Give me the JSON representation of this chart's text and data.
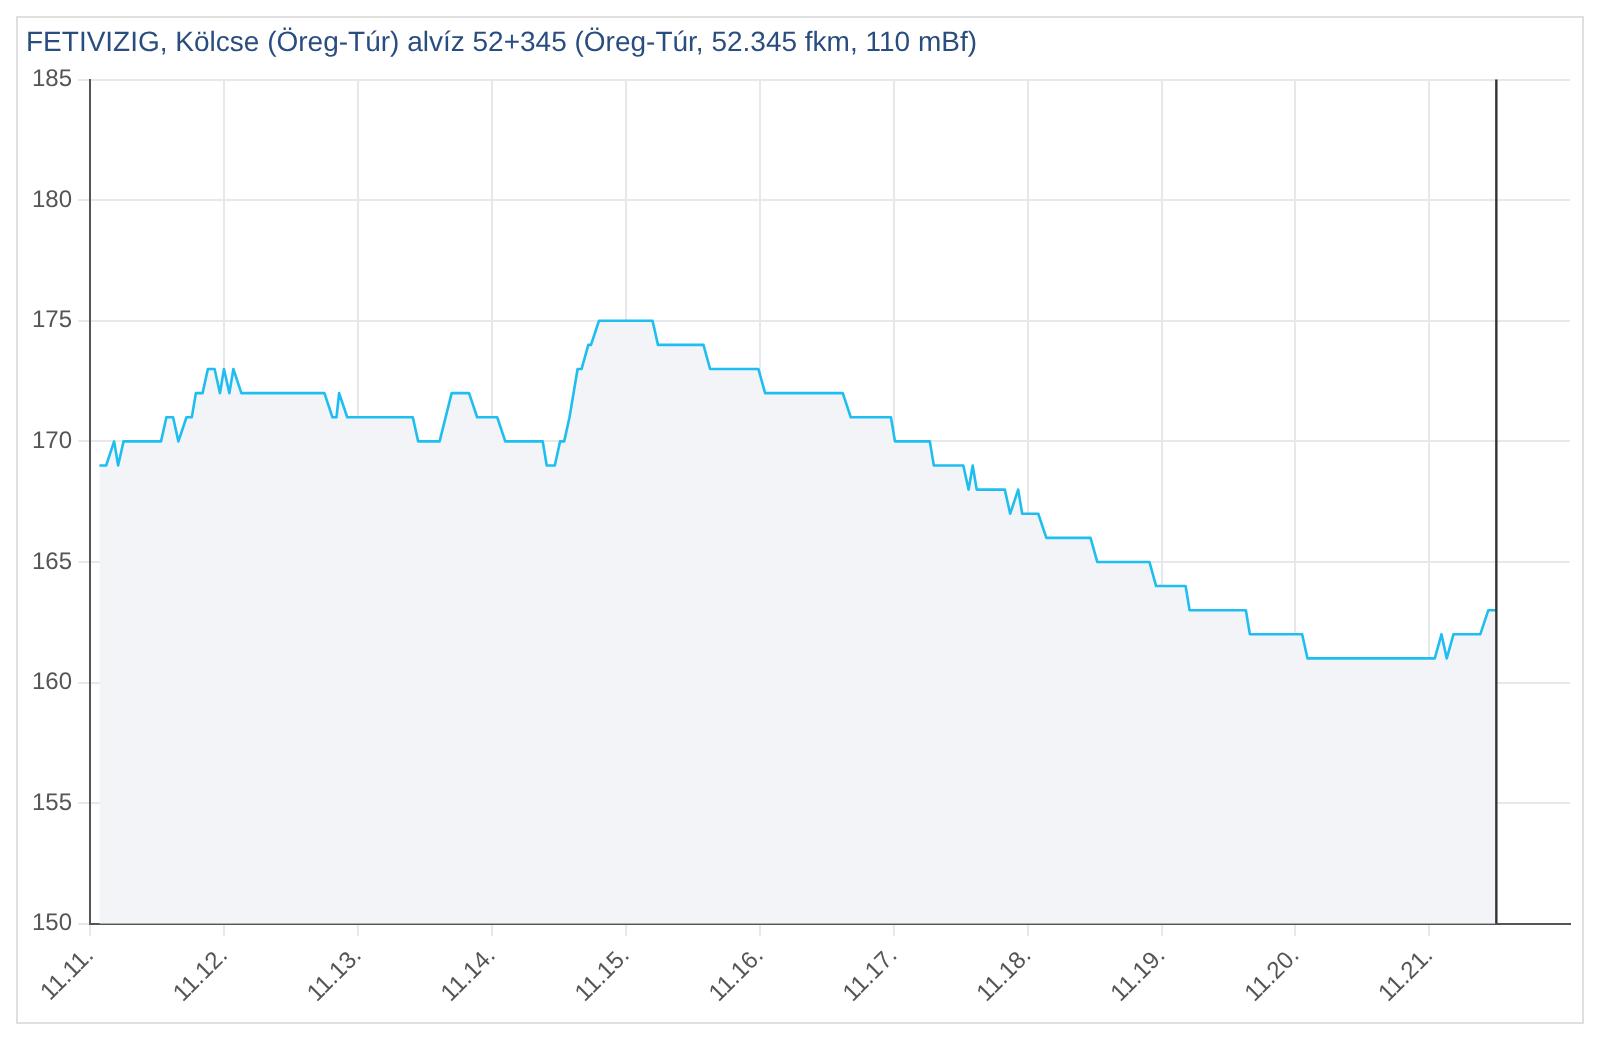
{
  "chart_data": {
    "type": "area",
    "title": "FETIVIZIG, Kölcse (Öreg-Túr) alvíz 52+345 (Öreg-Túr, 52.345 fkm, 110 mBf)",
    "series": [
      {
        "color": "#1ebef0",
        "x": [
          "--11-11T01:41",
          "--11-11T02:53",
          "--11-11T04:19",
          "--11-11T05:02",
          "--11-11T06:00",
          "--11-11T12:43",
          "--11-11T13:41",
          "--11-11T14:53",
          "--11-11T15:50",
          "--11-11T17:17",
          "--11-11T18:14",
          "--11-11T18:58",
          "--11-11T20:10",
          "--11-11T21:07",
          "--11-11T22:19",
          "--11-11T23:17",
          "--11-12T00:00",
          "--11-12T00:58",
          "--11-12T01:41",
          "--11-12T03:07",
          "--11-12T18:00",
          "--11-12T19:26",
          "--11-12T20:10",
          "--11-12T20:38",
          "--11-12T22:05",
          "--11-13T09:50",
          "--11-13T10:48",
          "--11-13T14:38",
          "--11-13T16:48",
          "--11-13T19:55",
          "--11-13T21:22",
          "--11-14T00:58",
          "--11-14T02:24",
          "--11-14T09:07",
          "--11-14T09:50",
          "--11-14T11:17",
          "--11-14T12:14",
          "--11-14T12:58",
          "--11-14T13:55",
          "--11-14T15:22",
          "--11-14T16:05",
          "--11-14T17:17",
          "--11-14T17:46",
          "--11-14T19:12",
          "--11-15T04:48",
          "--11-15T05:46",
          "--11-15T13:55",
          "--11-15T15:07",
          "--11-15T23:46",
          "--11-16T00:58",
          "--11-16T14:53",
          "--11-16T16:19",
          "--11-16T23:31",
          "--11-17T00:14",
          "--11-17T06:29",
          "--11-17T07:12",
          "--11-17T12:29",
          "--11-17T13:26",
          "--11-17T14:10",
          "--11-17T14:53",
          "--11-17T19:55",
          "--11-17T20:53",
          "--11-17T22:19",
          "--11-17T23:02",
          "--11-18T01:55",
          "--11-18T03:22",
          "--11-18T11:17",
          "--11-18T12:29",
          "--11-18T21:50",
          "--11-18T23:02",
          "--11-19T04:19",
          "--11-19T05:02",
          "--11-19T15:07",
          "--11-19T15:50",
          "--11-20T01:12",
          "--11-20T02:10",
          "--11-21T00:58",
          "--11-21T02:10",
          "--11-21T03:07",
          "--11-21T04:19",
          "--11-21T09:07",
          "--11-21T10:34",
          "--11-21T12:00"
        ],
        "values": [
          169,
          169,
          170,
          169,
          170,
          170,
          171,
          171,
          170,
          171,
          171,
          172,
          172,
          173,
          173,
          172,
          173,
          172,
          173,
          172,
          172,
          171,
          171,
          172,
          171,
          171,
          170,
          170,
          172,
          172,
          171,
          171,
          170,
          170,
          169,
          169,
          170,
          170,
          171,
          173,
          173,
          174,
          174,
          175,
          175,
          174,
          174,
          173,
          173,
          172,
          172,
          171,
          171,
          170,
          170,
          169,
          169,
          168,
          169,
          168,
          168,
          167,
          168,
          167,
          167,
          166,
          166,
          165,
          165,
          164,
          164,
          163,
          163,
          162,
          162,
          161,
          161,
          162,
          161,
          162,
          162,
          163,
          163
        ]
      }
    ],
    "xlim": [
      "--11-11",
      "--11-22T01:12"
    ],
    "xticks": [
      {
        "value": "--11-11",
        "label": "11.11."
      },
      {
        "value": "--11-12",
        "label": "11.12."
      },
      {
        "value": "--11-13",
        "label": "11.13."
      },
      {
        "value": "--11-14",
        "label": "11.14."
      },
      {
        "value": "--11-15",
        "label": "11.15."
      },
      {
        "value": "--11-16",
        "label": "11.16."
      },
      {
        "value": "--11-17",
        "label": "11.17."
      },
      {
        "value": "--11-18",
        "label": "11.18."
      },
      {
        "value": "--11-19",
        "label": "11.19."
      },
      {
        "value": "--11-20",
        "label": "11.20."
      },
      {
        "value": "--11-21",
        "label": "11.21."
      }
    ],
    "ylim": [
      150,
      185
    ],
    "yticks": [
      150,
      155,
      160,
      165,
      170,
      175,
      180,
      185
    ],
    "ref_lines": [
      {
        "axis": "x",
        "value": "--11-21T12:00",
        "color": "#333333"
      }
    ],
    "grid": true,
    "legend": false,
    "marker": "none",
    "line_style": "solid"
  }
}
